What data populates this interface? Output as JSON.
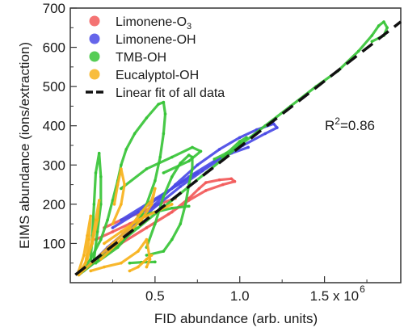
{
  "chart_data": {
    "type": "scatter",
    "xlabel": "FID abundance (arb. units)",
    "ylabel": "EIMS abundance (ions/extraction)",
    "xlim": [
      0,
      1.95
    ],
    "ylim": [
      0,
      700
    ],
    "x_unit_note": "x 10^6",
    "x_ticks": [
      {
        "value": 0.5,
        "label": "0.5"
      },
      {
        "value": 1.0,
        "label": "1.0"
      },
      {
        "value": 1.5,
        "label": "1.5 x 10"
      }
    ],
    "x_tick_exponent": "6",
    "y_ticks": [
      {
        "value": 100,
        "label": "100"
      },
      {
        "value": 200,
        "label": "200"
      },
      {
        "value": 300,
        "label": "300"
      },
      {
        "value": 400,
        "label": "400"
      },
      {
        "value": 500,
        "label": "500"
      },
      {
        "value": 600,
        "label": "600"
      },
      {
        "value": 700,
        "label": "700"
      }
    ],
    "annotation": {
      "prefix": "R",
      "sup": "2",
      "suffix": "=0.86",
      "x": 1.48,
      "y": 400
    },
    "legend_position": "top-left",
    "legend": [
      {
        "key": "lim_o3",
        "base": "Limonene-O",
        "sub": "3"
      },
      {
        "key": "lim_oh",
        "base": "Limonene-OH",
        "sub": ""
      },
      {
        "key": "tmb_oh",
        "base": "TMB-OH",
        "sub": ""
      },
      {
        "key": "euc_oh",
        "base": "Eucalyptol-OH",
        "sub": ""
      },
      {
        "key": "fit",
        "base": "Linear fit of all data",
        "sub": ""
      }
    ],
    "fit": {
      "name": "Linear fit of all data",
      "slope": 336,
      "intercept": 10,
      "x_range": [
        0.03,
        1.95
      ],
      "color": "#111111"
    },
    "series": [
      {
        "key": "lim_o3",
        "name": "Limonene-O3",
        "color": "#f25a5a",
        "paths": [
          [
            [
              0.05,
              20
            ],
            [
              0.15,
              60
            ],
            [
              0.3,
              100
            ],
            [
              0.45,
              140
            ],
            [
              0.6,
              180
            ],
            [
              0.7,
              215
            ],
            [
              0.76,
              240
            ],
            [
              0.8,
              255
            ],
            [
              0.88,
              262
            ],
            [
              0.95,
              265
            ],
            [
              0.97,
              258
            ],
            [
              0.9,
              250
            ],
            [
              0.8,
              235
            ],
            [
              0.7,
              210
            ],
            [
              0.58,
              175
            ],
            [
              0.45,
              140
            ],
            [
              0.3,
              100
            ],
            [
              0.15,
              55
            ],
            [
              0.06,
              25
            ]
          ],
          [
            [
              0.2,
              140
            ],
            [
              0.3,
              160
            ],
            [
              0.42,
              180
            ],
            [
              0.52,
              200
            ],
            [
              0.62,
              215
            ]
          ],
          [
            [
              0.15,
              110
            ],
            [
              0.25,
              130
            ],
            [
              0.35,
              150
            ],
            [
              0.45,
              170
            ]
          ]
        ]
      },
      {
        "key": "lim_oh",
        "name": "Limonene-OH",
        "color": "#4a4ae6",
        "paths": [
          [
            [
              0.05,
              20
            ],
            [
              0.2,
              80
            ],
            [
              0.35,
              140
            ],
            [
              0.5,
              200
            ],
            [
              0.62,
              250
            ],
            [
              0.75,
              300
            ],
            [
              0.88,
              340
            ],
            [
              1.0,
              370
            ],
            [
              1.1,
              390
            ],
            [
              1.2,
              405
            ],
            [
              1.22,
              395
            ],
            [
              1.15,
              380
            ],
            [
              1.02,
              350
            ],
            [
              0.9,
              320
            ],
            [
              0.78,
              285
            ],
            [
              0.65,
              245
            ],
            [
              0.52,
              200
            ],
            [
              0.38,
              150
            ],
            [
              0.22,
              90
            ],
            [
              0.08,
              30
            ]
          ],
          [
            [
              0.25,
              140
            ],
            [
              0.4,
              180
            ],
            [
              0.55,
              225
            ],
            [
              0.7,
              270
            ],
            [
              0.85,
              310
            ],
            [
              0.95,
              330
            ],
            [
              1.05,
              345
            ]
          ],
          [
            [
              0.3,
              160
            ],
            [
              0.45,
              200
            ],
            [
              0.6,
              240
            ],
            [
              0.75,
              280
            ]
          ]
        ]
      },
      {
        "key": "tmb_oh",
        "name": "TMB-OH",
        "color": "#38c438",
        "paths": [
          [
            [
              0.05,
              20
            ],
            [
              0.2,
              70
            ],
            [
              0.4,
              140
            ],
            [
              0.6,
              210
            ],
            [
              0.8,
              280
            ],
            [
              1.0,
              350
            ],
            [
              1.15,
              400
            ],
            [
              1.3,
              450
            ],
            [
              1.45,
              500
            ],
            [
              1.58,
              540
            ],
            [
              1.7,
              590
            ],
            [
              1.78,
              630
            ],
            [
              1.82,
              655
            ],
            [
              1.85,
              665
            ],
            [
              1.87,
              650
            ],
            [
              1.85,
              630
            ],
            [
              1.78,
              615
            ]
          ],
          [
            [
              0.05,
              20
            ],
            [
              0.12,
              60
            ],
            [
              0.18,
              110
            ],
            [
              0.22,
              160
            ],
            [
              0.25,
              210
            ],
            [
              0.28,
              260
            ],
            [
              0.3,
              300
            ],
            [
              0.33,
              340
            ],
            [
              0.38,
              380
            ],
            [
              0.45,
              420
            ],
            [
              0.52,
              455
            ],
            [
              0.55,
              460
            ],
            [
              0.56,
              430
            ],
            [
              0.55,
              380
            ],
            [
              0.53,
              320
            ],
            [
              0.5,
              260
            ],
            [
              0.45,
              200
            ],
            [
              0.38,
              140
            ],
            [
              0.28,
              90
            ],
            [
              0.15,
              50
            ]
          ],
          [
            [
              0.14,
              60
            ],
            [
              0.16,
              130
            ],
            [
              0.18,
              200
            ],
            [
              0.18,
              270
            ],
            [
              0.17,
              330
            ],
            [
              0.15,
              280
            ],
            [
              0.14,
              200
            ],
            [
              0.13,
              120
            ],
            [
              0.12,
              60
            ]
          ],
          [
            [
              0.45,
              90
            ],
            [
              0.5,
              150
            ],
            [
              0.55,
              220
            ],
            [
              0.6,
              270
            ],
            [
              0.65,
              305
            ],
            [
              0.7,
              325
            ],
            [
              0.72,
              320
            ],
            [
              0.72,
              290
            ],
            [
              0.7,
              250
            ],
            [
              0.68,
              200
            ],
            [
              0.65,
              150
            ],
            [
              0.6,
              110
            ],
            [
              0.55,
              80
            ],
            [
              0.45,
              70
            ]
          ],
          [
            [
              0.3,
              240
            ],
            [
              0.45,
              290
            ],
            [
              0.6,
              320
            ],
            [
              0.72,
              345
            ],
            [
              0.77,
              335
            ],
            [
              0.7,
              310
            ],
            [
              0.55,
              280
            ]
          ],
          [
            [
              0.35,
              50
            ],
            [
              0.42,
              52
            ],
            [
              0.5,
              53
            ]
          ],
          [
            [
              0.4,
              170
            ],
            [
              0.5,
              180
            ],
            [
              0.6,
              190
            ],
            [
              0.7,
              195
            ]
          ],
          [
            [
              0.85,
              315
            ],
            [
              0.92,
              330
            ],
            [
              1.0,
              355
            ],
            [
              1.04,
              370
            ],
            [
              1.0,
              360
            ],
            [
              0.9,
              320
            ]
          ]
        ]
      },
      {
        "key": "euc_oh",
        "name": "Eucalyptol-OH",
        "color": "#f7b21c",
        "paths": [
          [
            [
              0.05,
              20
            ],
            [
              0.1,
              60
            ],
            [
              0.13,
              110
            ],
            [
              0.15,
              160
            ],
            [
              0.17,
              210
            ],
            [
              0.16,
              160
            ],
            [
              0.13,
              100
            ],
            [
              0.08,
              40
            ]
          ],
          [
            [
              0.05,
              20
            ],
            [
              0.15,
              60
            ],
            [
              0.25,
              100
            ],
            [
              0.35,
              140
            ],
            [
              0.42,
              180
            ],
            [
              0.48,
              210
            ],
            [
              0.5,
              240
            ],
            [
              0.48,
              200
            ],
            [
              0.42,
              160
            ],
            [
              0.3,
              110
            ],
            [
              0.18,
              60
            ]
          ],
          [
            [
              0.25,
              150
            ],
            [
              0.3,
              200
            ],
            [
              0.32,
              250
            ],
            [
              0.3,
              290
            ],
            [
              0.28,
              250
            ],
            [
              0.26,
              200
            ]
          ],
          [
            [
              0.12,
              30
            ],
            [
              0.2,
              40
            ],
            [
              0.3,
              50
            ],
            [
              0.4,
              80
            ],
            [
              0.45,
              110
            ],
            [
              0.47,
              60
            ],
            [
              0.45,
              40
            ]
          ],
          [
            [
              0.05,
              30
            ],
            [
              0.08,
              70
            ],
            [
              0.1,
              120
            ],
            [
              0.12,
              170
            ],
            [
              0.11,
              110
            ],
            [
              0.09,
              50
            ]
          ],
          [
            [
              0.35,
              30
            ],
            [
              0.4,
              40
            ],
            [
              0.45,
              60
            ],
            [
              0.48,
              70
            ]
          ],
          [
            [
              0.2,
              100
            ],
            [
              0.3,
              130
            ],
            [
              0.4,
              160
            ],
            [
              0.5,
              180
            ],
            [
              0.6,
              200
            ]
          ]
        ]
      }
    ]
  }
}
